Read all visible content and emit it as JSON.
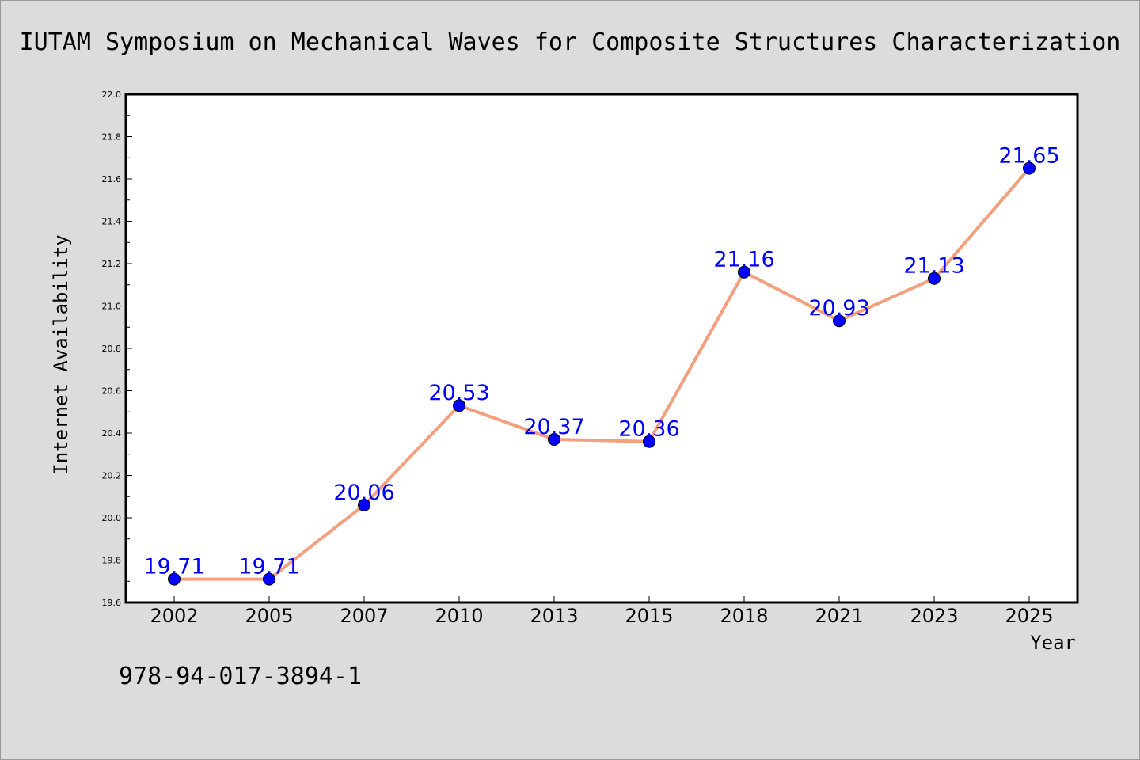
{
  "chart_data": {
    "type": "line",
    "title": "IUTAM Symposium on Mechanical Waves for Composite Structures Characterization",
    "xlabel": "Year",
    "ylabel": "Internet Availability",
    "categories": [
      "2002",
      "2005",
      "2007",
      "2010",
      "2013",
      "2015",
      "2018",
      "2021",
      "2023",
      "2025"
    ],
    "values": [
      19.71,
      19.71,
      20.06,
      20.53,
      20.37,
      20.36,
      21.16,
      20.93,
      21.13,
      21.65
    ],
    "data_labels": [
      "19.71",
      "19.71",
      "20.06",
      "20.53",
      "20.37",
      "20.36",
      "21.16",
      "20.93",
      "21.13",
      "21.65"
    ],
    "ylim": [
      19.6,
      22.0
    ],
    "y_ticks": [
      "19.6",
      "19.8",
      "20.0",
      "20.2",
      "20.4",
      "20.6",
      "20.8",
      "21.0",
      "21.2",
      "21.4",
      "21.6",
      "21.8",
      "22.0"
    ],
    "grid": false,
    "legend": "none",
    "annotation": "978-94-017-3894-1",
    "colors": {
      "background": "#dcdcdc",
      "plot_background": "#ffffff",
      "line": "#f4a07e",
      "marker": "#0000ff",
      "label": "#0000ff",
      "text": "#000000"
    }
  }
}
